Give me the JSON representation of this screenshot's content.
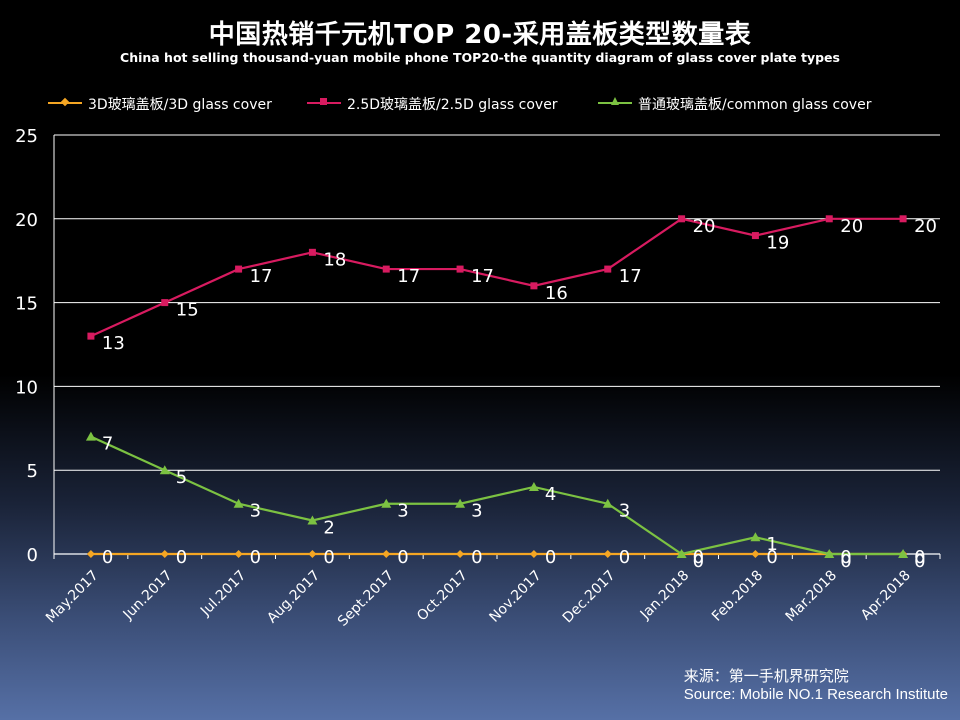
{
  "chart_data": {
    "type": "line",
    "title": "中国热销千元机TOP 20-采用盖板类型数量表",
    "subtitle": "China hot selling thousand-yuan mobile phone TOP20-the quantity diagram of glass cover plate types",
    "categories": [
      "May.2017",
      "Jun.2017",
      "Jul.2017",
      "Aug.2017",
      "Sept.2017",
      "Oct.2017",
      "Nov.2017",
      "Dec.2017",
      "Jan.2018",
      "Feb.2018",
      "Mar.2018",
      "Apr.2018"
    ],
    "series": [
      {
        "name": "3D玻璃盖板/3D glass cover",
        "color": "#f5a623",
        "marker": "diamond",
        "values": [
          0,
          0,
          0,
          0,
          0,
          0,
          0,
          0,
          0,
          0,
          0,
          0
        ]
      },
      {
        "name": "2.5D玻璃盖板/2.5D glass cover",
        "color": "#d81b60",
        "marker": "square",
        "values": [
          13,
          15,
          17,
          18,
          17,
          17,
          16,
          17,
          20,
          19,
          20,
          20
        ]
      },
      {
        "name": "普通玻璃盖板/common glass cover",
        "color": "#7cc242",
        "marker": "triangle",
        "values": [
          7,
          5,
          3,
          2,
          3,
          3,
          4,
          3,
          0,
          1,
          0,
          0
        ]
      }
    ],
    "ylim": [
      0,
      25
    ],
    "yticks": [
      0,
      5,
      10,
      15,
      20,
      25
    ],
    "grid": true,
    "legend_position": "top"
  },
  "source": {
    "line1": "来源：第一手机界研究院",
    "line2": "Source: Mobile NO.1 Research Institute"
  }
}
